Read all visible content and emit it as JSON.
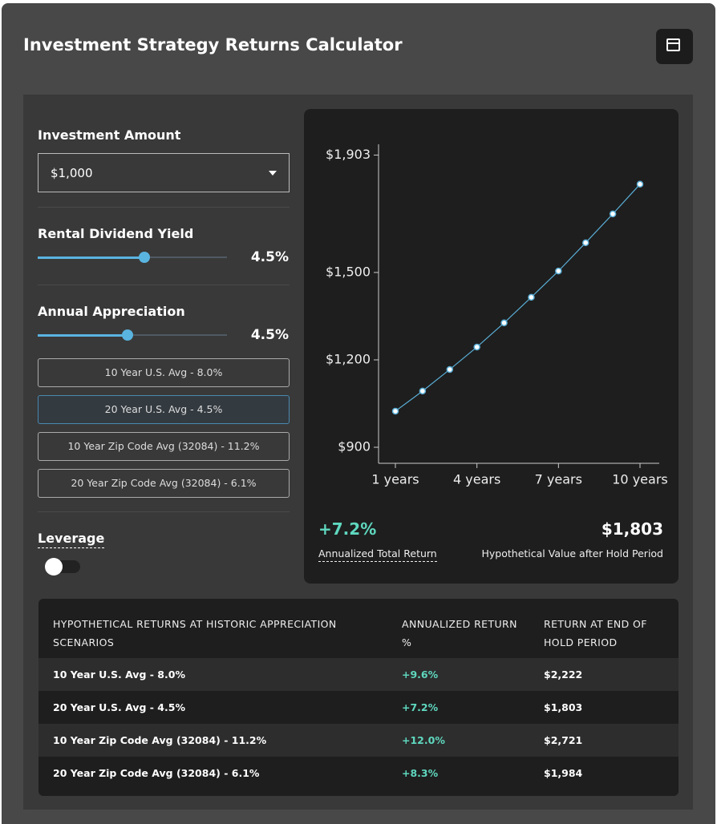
{
  "header": {
    "title": "Investment Strategy Returns Calculator"
  },
  "controls": {
    "investment_amount": {
      "label": "Investment Amount",
      "value": "$1,000"
    },
    "rental_dividend_yield": {
      "label": "Rental Dividend Yield",
      "value": "4.5%"
    },
    "annual_appreciation": {
      "label": "Annual Appreciation",
      "value": "4.5%"
    },
    "scenario_buttons": [
      "10 Year U.S. Avg - 8.0%",
      "20 Year U.S. Avg - 4.5%",
      "10 Year Zip Code Avg (32084) - 11.2%",
      "20 Year Zip Code Avg (32084) - 6.1%"
    ],
    "leverage": {
      "label": "Leverage"
    }
  },
  "chart_data": {
    "type": "line",
    "categories": [
      "1 years",
      null,
      null,
      "4 years",
      null,
      null,
      "7 years",
      null,
      null,
      "10 years"
    ],
    "values": [
      1024,
      1093,
      1167,
      1244,
      1327,
      1415,
      1505,
      1602,
      1701,
      1803
    ],
    "color": "#5aaed6",
    "ylim": [
      845,
      1940
    ],
    "yticks": [
      {
        "value": 900,
        "label": "$900"
      },
      {
        "value": 1200,
        "label": "$1,200"
      },
      {
        "value": 1500,
        "label": "$1,500"
      },
      {
        "value": 1903,
        "label": "$1,903"
      }
    ]
  },
  "summary": {
    "annualized_return": {
      "value": "+7.2%",
      "label": "Annualized Total Return"
    },
    "hypothetical_value": {
      "value": "$1,803",
      "label": "Hypothetical Value after Hold Period"
    }
  },
  "table": {
    "header": [
      "HYPOTHETICAL RETURNS AT HISTORIC APPRECIATION SCENARIOS",
      "ANNUALIZED RETURN %",
      "RETURN AT END OF HOLD PERIOD"
    ],
    "rows": [
      [
        "10 Year U.S. Avg - 8.0%",
        "+9.6%",
        "$2,222"
      ],
      [
        "20 Year U.S. Avg - 4.5%",
        "+7.2%",
        "$1,803"
      ],
      [
        "10 Year Zip Code Avg (32084) - 11.2%",
        "+12.0%",
        "$2,721"
      ],
      [
        "20 Year Zip Code Avg (32084) - 6.1%",
        "+8.3%",
        "$1,984"
      ]
    ]
  }
}
